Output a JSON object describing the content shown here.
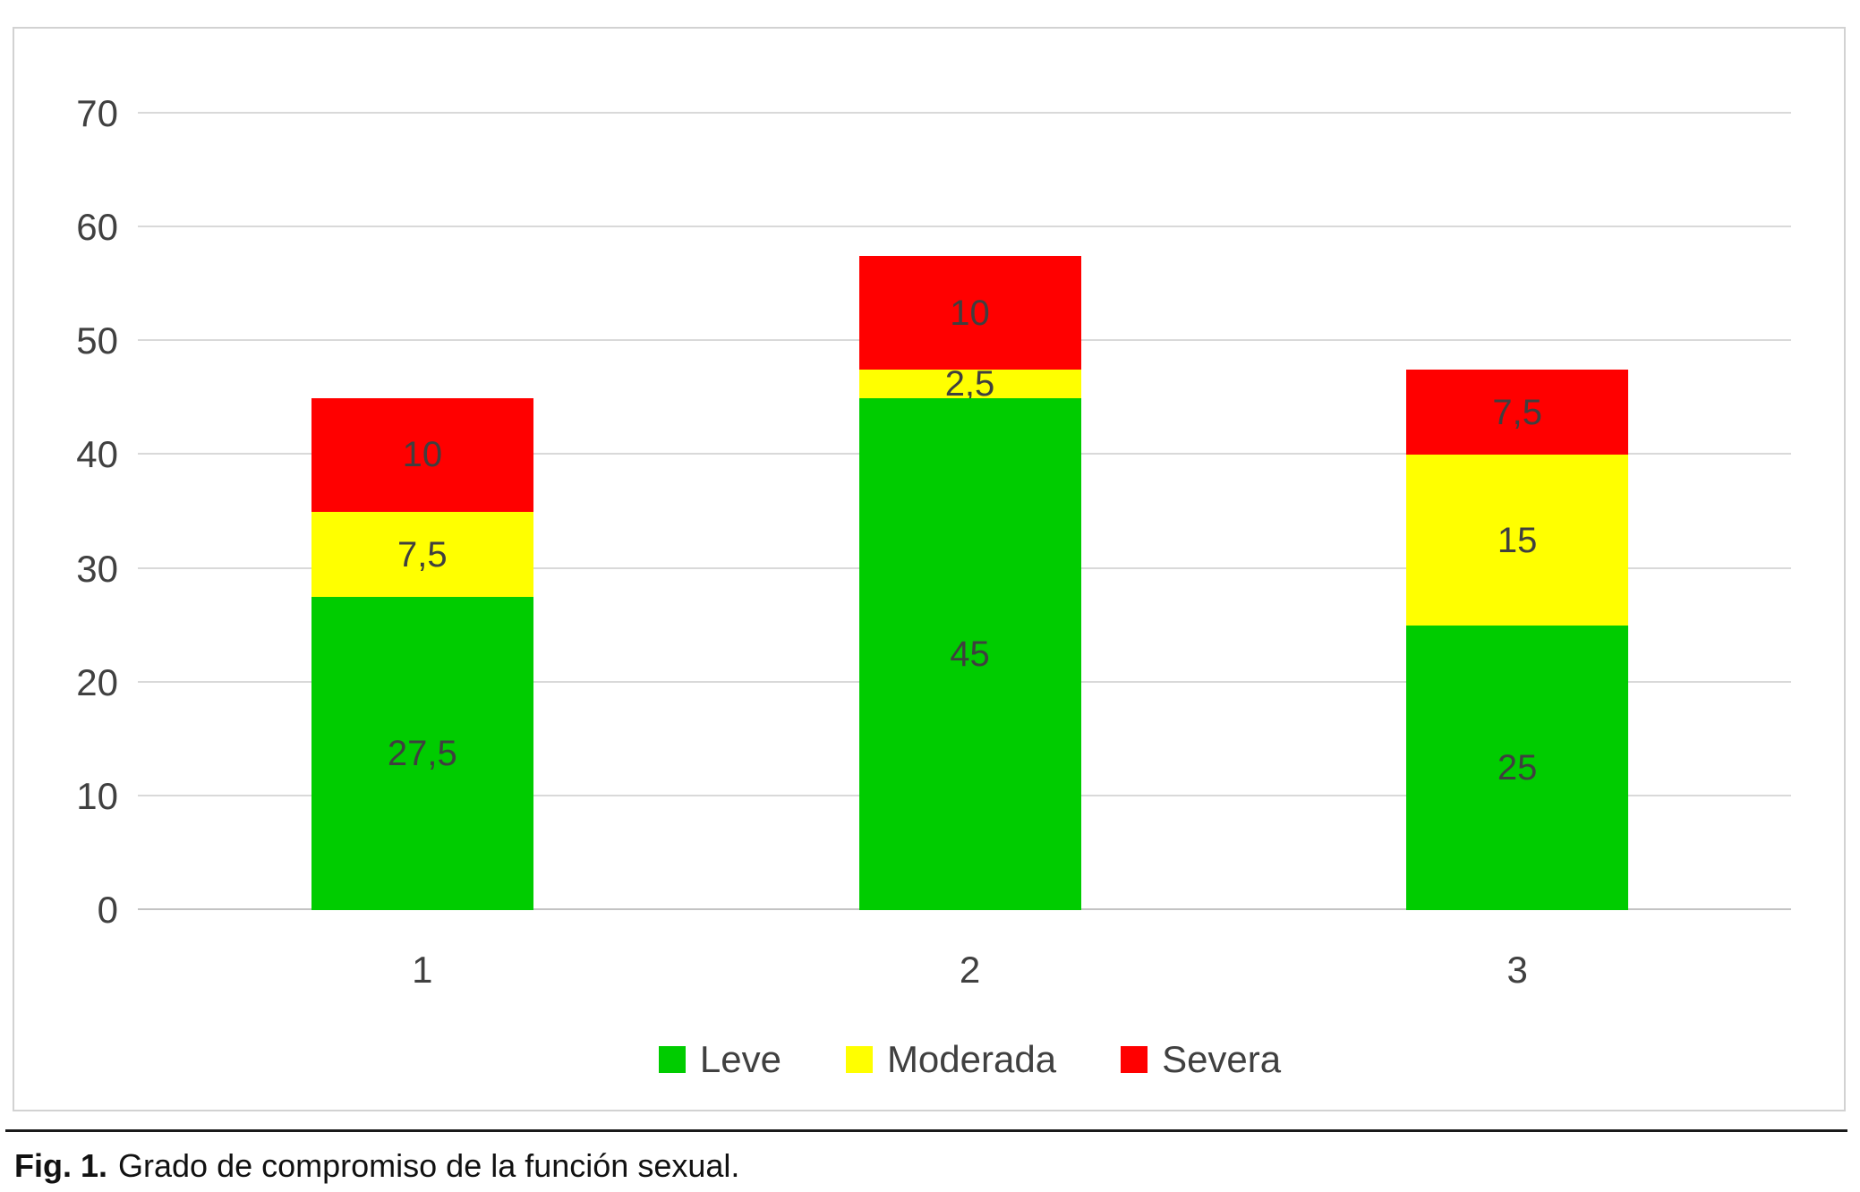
{
  "caption": {
    "prefix": "Fig. 1.",
    "text": "Grado de compromiso de la función sexual."
  },
  "chart_data": {
    "type": "bar",
    "stacked": true,
    "title": "",
    "xlabel": "",
    "ylabel": "",
    "categories": [
      "1",
      "2",
      "3"
    ],
    "series": [
      {
        "name": "Leve",
        "color": "#00cc00",
        "values": [
          27.5,
          45,
          25
        ],
        "labels": [
          "27,5",
          "45",
          "25"
        ]
      },
      {
        "name": "Moderada",
        "color": "#ffff00",
        "values": [
          7.5,
          2.5,
          15
        ],
        "labels": [
          "7,5",
          "2,5",
          "15"
        ]
      },
      {
        "name": "Severa",
        "color": "#ff0000",
        "values": [
          10,
          10,
          7.5
        ],
        "labels": [
          "10",
          "10",
          "7,5"
        ]
      }
    ],
    "totals": [
      45,
      57.5,
      47.5
    ],
    "ylim": [
      0,
      70
    ],
    "yticks": [
      0,
      10,
      20,
      30,
      40,
      50,
      60,
      70
    ],
    "grid": true,
    "gridline_color": "#d9d9d9",
    "label_color": "#3f3f3f",
    "legend_position": "bottom"
  }
}
